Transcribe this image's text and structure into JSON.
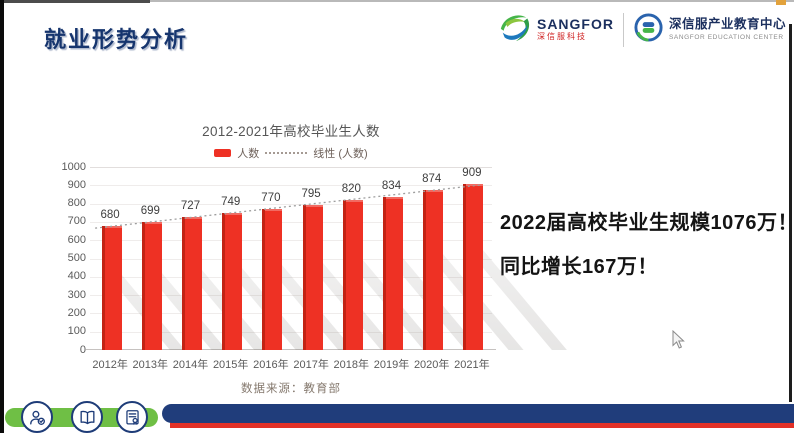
{
  "slide_title": "就业形势分析",
  "header": {
    "sangfor_logo": {
      "brand": "SANGFOR",
      "brand_cn": "深信服科技"
    },
    "edu_center_logo": {
      "name_cn": "深信服产业教育中心",
      "name_en": "SANGFOR EDUCATION CENTER"
    }
  },
  "chart_data": {
    "type": "bar",
    "title": "2012-2021年高校毕业生人数",
    "legend": [
      {
        "label": "人数",
        "marker": "bar",
        "color": "#ee3124"
      },
      {
        "label": "线性 (人数)",
        "marker": "dotted-line",
        "color": "#a59a93"
      }
    ],
    "categories": [
      "2012年",
      "2013年",
      "2014年",
      "2015年",
      "2016年",
      "2017年",
      "2018年",
      "2019年",
      "2020年",
      "2021年"
    ],
    "values": [
      680,
      699,
      727,
      749,
      770,
      795,
      820,
      834,
      874,
      909
    ],
    "ylim": [
      0,
      1000
    ],
    "ytick_step": 100,
    "grid": true,
    "trendline": "linear",
    "legend_position": "top",
    "source": "数据来源：教育部"
  },
  "callout": {
    "line1": "2022届高校毕业生规模1076万！",
    "line2": "同比增长167万！"
  },
  "footer": {
    "icons": [
      "user-check-icon",
      "open-book-icon",
      "certificate-icon"
    ]
  },
  "colors": {
    "title_navy": "#16356e",
    "bar_red": "#ee3124",
    "footer_green": "#6fbf45",
    "footer_blue": "#203d7b",
    "footer_red": "#e23127",
    "brand_red": "#cf2222"
  }
}
